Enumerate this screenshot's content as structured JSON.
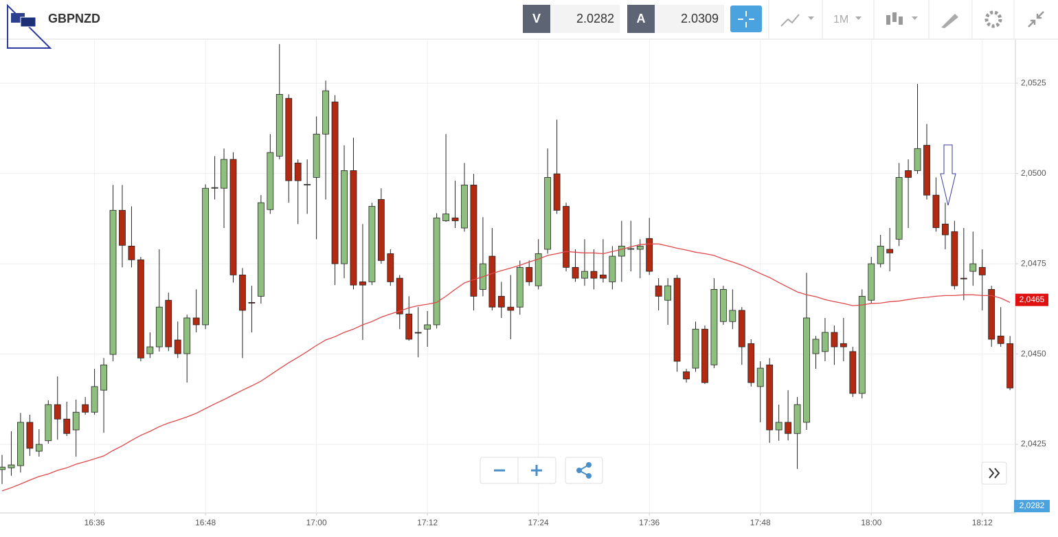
{
  "toolbar": {
    "symbol": "GBPNZD",
    "bid_tag": "V",
    "bid": "2.0282",
    "ask_tag": "A",
    "ask": "2.0309",
    "interval": "1M"
  },
  "chart_data": {
    "type": "candlestick",
    "x": [
      "16:26",
      "16:27",
      "16:28",
      "16:29",
      "16:30",
      "16:31",
      "16:32",
      "16:33",
      "16:34",
      "16:35",
      "16:36",
      "16:37",
      "16:38",
      "16:39",
      "16:40",
      "16:41",
      "16:42",
      "16:43",
      "16:44",
      "16:45",
      "16:46",
      "16:47",
      "16:48",
      "16:49",
      "16:50",
      "16:51",
      "16:52",
      "16:53",
      "16:54",
      "16:55",
      "16:56",
      "16:57",
      "16:58",
      "16:59",
      "17:00",
      "17:01",
      "17:02",
      "17:03",
      "17:04",
      "17:05",
      "17:06",
      "17:07",
      "17:08",
      "17:09",
      "17:10",
      "17:11",
      "17:12",
      "17:13",
      "17:14",
      "17:15",
      "17:16",
      "17:17",
      "17:18",
      "17:19",
      "17:20",
      "17:21",
      "17:22",
      "17:23",
      "17:24",
      "17:25",
      "17:26",
      "17:27",
      "17:28",
      "17:29",
      "17:30",
      "17:31",
      "17:32",
      "17:33",
      "17:34",
      "17:35",
      "17:36",
      "17:37",
      "17:38",
      "17:39",
      "17:40",
      "17:41",
      "17:42",
      "17:43",
      "17:44",
      "17:45",
      "17:46",
      "17:47",
      "17:48",
      "17:49",
      "17:50",
      "17:51",
      "17:52",
      "17:53",
      "17:54",
      "17:55",
      "17:56",
      "17:57",
      "17:58",
      "17:59",
      "18:00",
      "18:01",
      "18:02",
      "18:03",
      "18:04",
      "18:05",
      "18:06",
      "18:07",
      "18:08",
      "18:09",
      "18:10",
      "18:11",
      "18:12",
      "18:13",
      "18:14",
      "18:15"
    ],
    "open": [
      2.0418,
      2.04185,
      2.04191,
      2.04311,
      2.04231,
      2.0426,
      2.0436,
      2.0432,
      2.0429,
      2.0436,
      2.04339,
      2.044,
      2.04499,
      2.04898,
      2.04799,
      2.04761,
      2.04501,
      2.0452,
      2.04649,
      2.04539,
      2.04501,
      2.046,
      2.04581,
      2.04959,
      2.04959,
      2.05039,
      2.04719,
      2.04643,
      2.0466,
      2.049,
      2.05048,
      2.05208,
      2.05029,
      2.04968,
      2.04989,
      2.05109,
      2.05198,
      2.0475,
      2.05008,
      2.047,
      2.047,
      2.04928,
      2.04778,
      2.0471,
      2.04611,
      2.0456,
      2.04569,
      2.04581,
      2.04869,
      2.04877,
      2.04849,
      2.04968,
      2.04679,
      2.04771,
      2.0466,
      2.0463,
      2.0463,
      2.0474,
      2.04689,
      2.0479,
      2.04999,
      2.04909,
      2.0474,
      2.0471,
      2.04729,
      2.04719,
      2.047,
      2.04771,
      2.0479,
      2.0479,
      2.0482,
      2.04689,
      2.04649,
      2.0471,
      2.04451,
      2.04461,
      2.04569,
      2.0447,
      2.0459,
      2.0459,
      2.04621,
      2.04529,
      2.0441,
      2.0447,
      2.0429,
      2.04311,
      2.0428,
      2.04311,
      2.04501,
      2.04507,
      2.0456,
      2.04529,
      2.04507,
      2.04391,
      2.04649,
      2.0475,
      2.0479,
      2.04818,
      2.05008,
      2.05008,
      2.05078,
      2.0494,
      2.0486,
      2.04839,
      2.0471,
      2.04729,
      2.0474,
      2.04679,
      2.0455,
      2.04529
    ],
    "high": [
      2.04221,
      2.04286,
      2.04337,
      2.04332,
      2.04292,
      2.04372,
      2.04438,
      2.04368,
      2.04374,
      2.04381,
      2.04459,
      2.04489,
      2.04968,
      2.04968,
      2.04909,
      2.04769,
      2.0456,
      2.0479,
      2.0467,
      2.0459,
      2.04609,
      2.04679,
      2.0497,
      2.05048,
      2.05069,
      2.05059,
      2.04738,
      2.04689,
      2.0494,
      2.05109,
      2.05358,
      2.05219,
      2.05039,
      2.05039,
      2.05158,
      2.05257,
      2.05217,
      2.05078,
      2.05099,
      2.0486,
      2.04919,
      2.04959,
      2.0479,
      2.04719,
      2.0466,
      2.0463,
      2.04619,
      2.0489,
      2.05109,
      2.0498,
      2.05029,
      2.04999,
      2.04879,
      2.04849,
      2.047,
      2.04719,
      2.04759,
      2.04759,
      2.04818,
      2.05069,
      2.05149,
      2.04919,
      2.0479,
      2.04818,
      2.0479,
      2.04818,
      2.04799,
      2.04869,
      2.04869,
      2.04818,
      2.04877,
      2.0471,
      2.0471,
      2.04719,
      2.04459,
      2.0459,
      2.04579,
      2.0471,
      2.04689,
      2.04679,
      2.0463,
      2.04541,
      2.0448,
      2.04489,
      2.0436,
      2.044,
      2.04381,
      2.04725,
      2.0455,
      2.046,
      2.04579,
      2.046,
      2.0452,
      2.04679,
      2.04769,
      2.0483,
      2.04849,
      2.05029,
      2.05039,
      2.05248,
      2.05137,
      2.04989,
      2.04919,
      2.04869,
      2.04849,
      2.04839,
      2.0479,
      2.04689,
      2.0463,
      2.0455
    ],
    "low": [
      2.0414,
      2.04163,
      2.04172,
      2.04218,
      2.04216,
      2.04252,
      2.04263,
      2.04273,
      2.04216,
      2.04332,
      2.04332,
      2.04282,
      2.0448,
      2.0474,
      2.0474,
      2.0448,
      2.04489,
      2.04507,
      2.04508,
      2.04489,
      2.04421,
      2.0456,
      2.04569,
      2.04928,
      2.04849,
      2.04698,
      2.04489,
      2.0456,
      2.0464,
      2.04888,
      2.05039,
      2.04919,
      2.0486,
      2.04888,
      2.04818,
      2.04928,
      2.04691,
      2.0471,
      2.04679,
      2.04539,
      2.04691,
      2.0475,
      2.04689,
      2.04569,
      2.04537,
      2.04491,
      2.0452,
      2.04571,
      2.04866,
      2.04849,
      2.04839,
      2.04621,
      2.0466,
      2.04621,
      2.046,
      2.04541,
      2.04609,
      2.04689,
      2.04679,
      2.04778,
      2.04888,
      2.04729,
      2.047,
      2.04689,
      2.04679,
      2.04698,
      2.04679,
      2.047,
      2.04729,
      2.0471,
      2.04719,
      2.04621,
      2.04581,
      2.04451,
      2.04421,
      2.04451,
      2.04417,
      2.04461,
      2.04581,
      2.04569,
      2.0447,
      2.0441,
      2.04311,
      2.04254,
      2.0426,
      2.04261,
      2.04182,
      2.0429,
      2.04459,
      2.0448,
      2.0447,
      2.0448,
      2.04381,
      2.04377,
      2.0464,
      2.0474,
      2.04729,
      2.04799,
      2.04849,
      2.04999,
      2.04928,
      2.04839,
      2.0479,
      2.04679,
      2.04649,
      2.04689,
      2.04621,
      2.0452,
      2.0452,
      2.044
    ],
    "close": [
      2.04187,
      2.04193,
      2.04311,
      2.04239,
      2.0425,
      2.0436,
      2.0432,
      2.0428,
      2.04339,
      2.04339,
      2.0441,
      2.0447,
      2.04898,
      2.04801,
      2.04761,
      2.04489,
      2.0452,
      2.0463,
      2.0452,
      2.04501,
      2.046,
      2.04581,
      2.04959,
      2.04961,
      2.05039,
      2.04719,
      2.04621,
      2.04641,
      2.04919,
      2.05058,
      2.05219,
      2.0498,
      2.0498,
      2.0497,
      2.05109,
      2.05229,
      2.0475,
      2.05008,
      2.04691,
      2.04691,
      2.04909,
      2.04759,
      2.047,
      2.04611,
      2.04541,
      2.04558,
      2.04581,
      2.04877,
      2.04888,
      2.04869,
      2.04968,
      2.0466,
      2.0475,
      2.0463,
      2.0463,
      2.04621,
      2.0474,
      2.047,
      2.04778,
      2.04989,
      2.04898,
      2.0474,
      2.0471,
      2.04729,
      2.0471,
      2.0471,
      2.04771,
      2.04799,
      2.04792,
      2.04799,
      2.04729,
      2.0466,
      2.04689,
      2.0448,
      2.04431,
      2.04569,
      2.04421,
      2.04679,
      2.04679,
      2.04621,
      2.0452,
      2.04421,
      2.04461,
      2.0429,
      2.04311,
      2.0428,
      2.0436,
      2.046,
      2.04541,
      2.0456,
      2.0452,
      2.0452,
      2.04391,
      2.0466,
      2.0475,
      2.04799,
      2.0478,
      2.04989,
      2.04989,
      2.05069,
      2.0494,
      2.0485,
      2.0483,
      2.04689,
      2.04708,
      2.0475,
      2.04719,
      2.04541,
      2.04529,
      2.04406
    ],
    "up_color": "#8fbf7f",
    "down_color": "#b22a12",
    "overlay": {
      "color": "#e0474a",
      "values": [
        2.04121,
        2.0413,
        2.0414,
        2.04151,
        2.04161,
        2.04168,
        2.04178,
        2.04185,
        2.04195,
        2.04202,
        2.0421,
        2.04218,
        2.04233,
        2.04246,
        2.04261,
        2.04275,
        2.04286,
        2.04299,
        2.04309,
        2.04317,
        2.04326,
        2.04336,
        2.04349,
        2.04362,
        2.04374,
        2.04387,
        2.044,
        2.04412,
        2.04425,
        2.04442,
        2.04459,
        2.04476,
        2.04491,
        2.04507,
        2.04524,
        2.04539,
        2.04548,
        2.0456,
        2.04569,
        2.04581,
        2.0459,
        2.04602,
        2.04611,
        2.04619,
        2.04628,
        2.04634,
        2.04638,
        2.04643,
        2.0466,
        2.04679,
        2.04697,
        2.04706,
        2.04714,
        2.04723,
        2.04731,
        2.04738,
        2.04746,
        2.04755,
        2.04763,
        2.04773,
        2.04778,
        2.04784,
        2.04782,
        2.0478,
        2.0478,
        2.04778,
        2.04784,
        2.0479,
        2.04797,
        2.04803,
        2.04805,
        2.04805,
        2.04799,
        2.04793,
        2.04788,
        2.04782,
        2.04778,
        2.04773,
        2.04763,
        2.04755,
        2.04746,
        2.04735,
        2.04723,
        2.04712,
        2.04698,
        2.04685,
        2.04672,
        2.04664,
        2.04659,
        2.04651,
        2.04645,
        2.0464,
        2.04634,
        2.04636,
        2.0464,
        2.04641,
        2.04645,
        2.04647,
        2.04651,
        2.04655,
        2.04657,
        2.0466,
        2.04662,
        2.04662,
        2.04664,
        2.04664,
        2.04662,
        2.04662,
        2.04655,
        2.04643
      ]
    },
    "last_label": {
      "value": 2.0465,
      "label": "2,0465"
    },
    "bid_label": "2,0282",
    "ylim": [
      2.0406,
      2.0537
    ],
    "yticks": [
      {
        "value": 2.0425,
        "label": "2,0425"
      },
      {
        "value": 2.045,
        "label": "2,0450"
      },
      {
        "value": 2.0475,
        "label": "2,0475"
      },
      {
        "value": 2.05,
        "label": "2,0500"
      },
      {
        "value": 2.0525,
        "label": "2,0525"
      }
    ],
    "xticks": [
      "16:36",
      "16:48",
      "17:00",
      "17:12",
      "17:24",
      "17:36",
      "17:48",
      "18:00",
      "18:12"
    ],
    "grid": true
  }
}
